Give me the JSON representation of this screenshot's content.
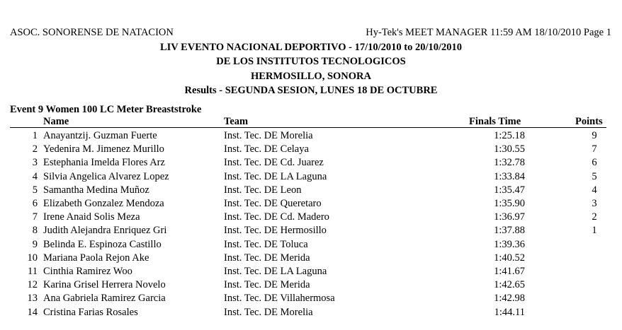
{
  "header": {
    "org": "ASOC. SONORENSE DE NATACION",
    "software": "Hy-Tek's MEET MANAGER  11:59 AM  18/10/2010  Page 1"
  },
  "titles": [
    "LIV EVENTO NACIONAL DEPORTIVO - 17/10/2010 to 20/10/2010",
    "DE LOS INSTITUTOS TECNOLOGICOS",
    "HERMOSILLO, SONORA",
    "Results - SEGUNDA SESION, LUNES 18 DE OCTUBRE"
  ],
  "event": {
    "title": "Event 9  Women 100 LC Meter Breaststroke",
    "columns": {
      "name": "Name",
      "team": "Team",
      "time": "Finals Time",
      "points": "Points"
    },
    "rows": [
      {
        "rank": "1",
        "name": "Anayantzij. Guzman Fuerte",
        "team": "Inst. Tec. DE Morelia",
        "time": "1:25.18",
        "points": "9"
      },
      {
        "rank": "2",
        "name": "Yedenira M. Jimenez Murillo",
        "team": "Inst. Tec. DE Celaya",
        "time": "1:30.55",
        "points": "7"
      },
      {
        "rank": "3",
        "name": "Estephania Imelda Flores Arz",
        "team": "Inst. Tec. DE Cd. Juarez",
        "time": "1:32.78",
        "points": "6"
      },
      {
        "rank": "4",
        "name": "Silvia Angelica Alvarez Lopez",
        "team": "Inst. Tec. DE LA Laguna",
        "time": "1:33.84",
        "points": "5"
      },
      {
        "rank": "5",
        "name": "Samantha Medina Muñoz",
        "team": "Inst. Tec. DE Leon",
        "time": "1:35.47",
        "points": "4"
      },
      {
        "rank": "6",
        "name": "Elizabeth Gonzalez Mendoza",
        "team": "Inst. Tec. DE Queretaro",
        "time": "1:35.90",
        "points": "3"
      },
      {
        "rank": "7",
        "name": "Irene Anaid Solis Meza",
        "team": "Inst. Tec. DE Cd. Madero",
        "time": "1:36.97",
        "points": "2"
      },
      {
        "rank": "8",
        "name": "Judith Alejandra Enriquez Gri",
        "team": "Inst. Tec. DE Hermosillo",
        "time": "1:37.88",
        "points": "1"
      },
      {
        "rank": "9",
        "name": "Belinda E. Espinoza Castillo",
        "team": "Inst. Tec. DE Toluca",
        "time": "1:39.36",
        "points": ""
      },
      {
        "rank": "10",
        "name": "Mariana Paola Rejon Ake",
        "team": "Inst. Tec. DE Merida",
        "time": "1:40.52",
        "points": ""
      },
      {
        "rank": "11",
        "name": "Cinthia Ramirez Woo",
        "team": "Inst. Tec. DE LA Laguna",
        "time": "1:41.67",
        "points": ""
      },
      {
        "rank": "12",
        "name": "Karina Grisel Herrera Novelo",
        "team": "Inst. Tec. DE Merida",
        "time": "1:42.65",
        "points": ""
      },
      {
        "rank": "13",
        "name": "Ana Gabriela Ramirez Garcia",
        "team": "Inst. Tec. DE Villahermosa",
        "time": "1:42.98",
        "points": ""
      },
      {
        "rank": "14",
        "name": "Cristina Farias Rosales",
        "team": "Inst. Tec. DE Morelia",
        "time": "1:44.11",
        "points": ""
      }
    ]
  }
}
